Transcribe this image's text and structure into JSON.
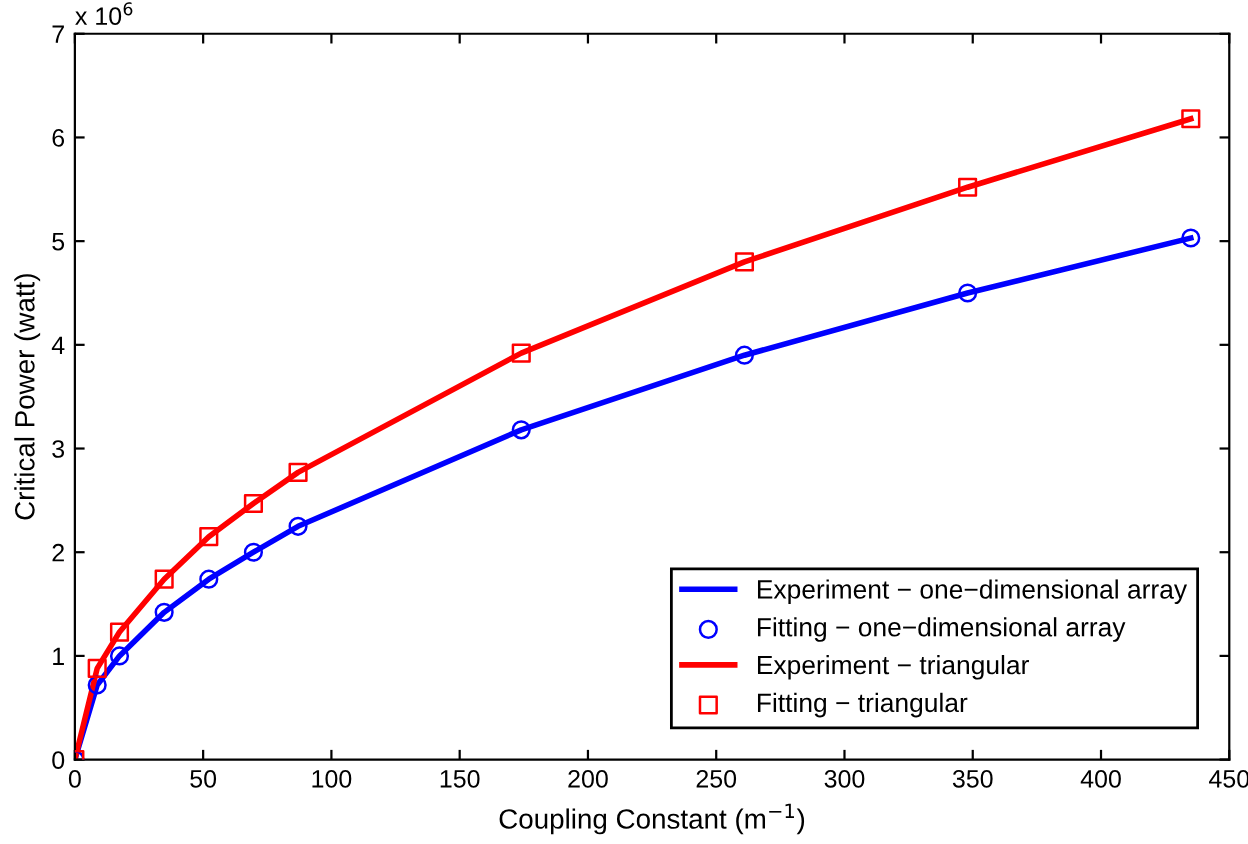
{
  "chart_data": {
    "type": "line",
    "xlabel": "Coupling Constant (m$^{−1}$)",
    "ylabel": "Critical Power (watt)",
    "annotations": [
      "x 10$^{6}$"
    ],
    "xlim": [
      0,
      450
    ],
    "xticks": [
      0,
      50,
      100,
      150,
      200,
      250,
      300,
      350,
      400,
      450
    ],
    "ylim": [
      0,
      7
    ],
    "yticks": [
      0,
      1,
      2,
      3,
      4,
      5,
      6,
      7
    ],
    "grid": false,
    "legend": "bottom right",
    "series": [
      {
        "name": "Experiment − one−dimensional array",
        "color": "#0000ff",
        "marker": "none",
        "line_style": "solid",
        "x": [
          0,
          8.7,
          17.4,
          34.8,
          52.2,
          69.6,
          87,
          174,
          261,
          348,
          435
        ],
        "values": [
          0,
          0.72,
          1.0,
          1.42,
          1.74,
          2.0,
          2.25,
          3.18,
          3.9,
          4.5,
          5.03
        ]
      },
      {
        "name": "Fitting − one−dimensional array",
        "type": "scatter",
        "color": "#0000ff",
        "marker": "circle",
        "x": [
          0,
          8.7,
          17.4,
          34.8,
          52.2,
          69.6,
          87,
          174,
          261,
          348,
          435
        ],
        "values": [
          0,
          0.72,
          1.0,
          1.42,
          1.74,
          2.0,
          2.25,
          3.18,
          3.9,
          4.5,
          5.03
        ]
      },
      {
        "name": "Experiment − triangular",
        "color": "#ff0000",
        "marker": "none",
        "line_style": "solid",
        "x": [
          0,
          8.7,
          17.4,
          34.8,
          52.2,
          69.6,
          87,
          174,
          261,
          348,
          435
        ],
        "values": [
          0,
          0.88,
          1.23,
          1.74,
          2.15,
          2.47,
          2.77,
          3.92,
          4.8,
          5.52,
          6.18
        ]
      },
      {
        "name": "Fitting − triangular",
        "type": "scatter",
        "color": "#ff0000",
        "marker": "square",
        "x": [
          0,
          8.7,
          17.4,
          34.8,
          52.2,
          69.6,
          87,
          174,
          261,
          348,
          435
        ],
        "values": [
          0,
          0.88,
          1.23,
          1.74,
          2.15,
          2.47,
          2.77,
          3.92,
          4.8,
          5.52,
          6.18
        ]
      }
    ]
  }
}
